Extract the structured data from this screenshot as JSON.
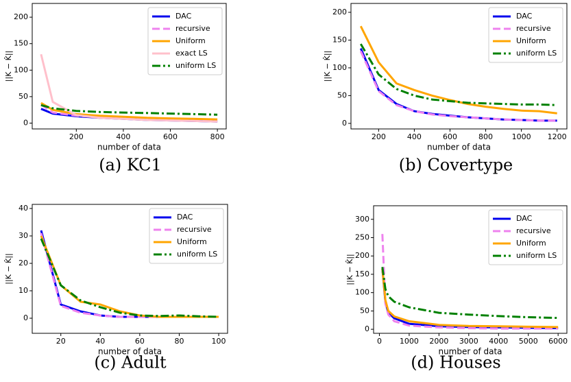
{
  "chart_data": [
    {
      "type": "line",
      "caption": "(a) KC1",
      "x_label": "number of data",
      "y_label": "||K − K̂||",
      "x": [
        50,
        100,
        200,
        300,
        400,
        500,
        600,
        700,
        800
      ],
      "xlim": [
        12.5,
        837.5
      ],
      "ylim": [
        -11,
        226
      ],
      "xticks": [
        200,
        400,
        600,
        800
      ],
      "yticks": [
        0,
        50,
        100,
        150,
        200
      ],
      "legend": "upper right",
      "series": [
        {
          "name": "DAC",
          "color": "#0000ee",
          "linestyle": "solid",
          "values": [
            27,
            18,
            13,
            10,
            8,
            6,
            5,
            4,
            3
          ]
        },
        {
          "name": "recursive",
          "color": "#ee82ee",
          "linestyle": "dashed",
          "values": [
            35,
            20,
            14,
            11,
            9,
            7,
            6,
            5,
            4
          ]
        },
        {
          "name": "Uniform",
          "color": "#ffa500",
          "linestyle": "solid",
          "values": [
            38,
            25,
            17,
            14,
            12,
            10,
            9,
            8,
            7
          ]
        },
        {
          "name": "exact LS",
          "color": "#ffc0cb",
          "linestyle": "solid",
          "values": [
            130,
            40,
            15,
            10,
            8,
            6,
            5,
            4,
            3
          ]
        },
        {
          "name": "uniform LS",
          "color": "#008000",
          "linestyle": "dashdot",
          "values": [
            34,
            28,
            23,
            21,
            20,
            19,
            18,
            17,
            16
          ]
        }
      ]
    },
    {
      "type": "line",
      "caption": "(b) Covertype",
      "x_label": "number of data",
      "y_label": "||K − K̂||",
      "x": [
        100,
        200,
        300,
        400,
        500,
        600,
        700,
        800,
        900,
        1000,
        1100,
        1200
      ],
      "xlim": [
        45,
        1255
      ],
      "ylim": [
        -10,
        216
      ],
      "xticks": [
        200,
        400,
        600,
        800,
        1000,
        1200
      ],
      "yticks": [
        0,
        50,
        100,
        150,
        200
      ],
      "legend": "upper right",
      "series": [
        {
          "name": "DAC",
          "color": "#0000ee",
          "linestyle": "solid",
          "values": [
            135,
            60,
            35,
            22,
            17,
            14,
            11,
            9,
            7,
            6,
            5,
            5
          ]
        },
        {
          "name": "recursive",
          "color": "#ee82ee",
          "linestyle": "dashed",
          "values": [
            130,
            58,
            33,
            22,
            16,
            13,
            11,
            9,
            7,
            6,
            5,
            5
          ]
        },
        {
          "name": "Uniform",
          "color": "#ffa500",
          "linestyle": "solid",
          "values": [
            175,
            110,
            72,
            60,
            50,
            42,
            35,
            30,
            26,
            23,
            22,
            18
          ]
        },
        {
          "name": "uniform LS",
          "color": "#008000",
          "linestyle": "dashdot",
          "values": [
            143,
            88,
            62,
            50,
            43,
            40,
            37,
            36,
            35,
            34,
            34,
            33
          ]
        }
      ]
    },
    {
      "type": "line",
      "caption": "(c) Adult",
      "x_label": "number of data",
      "y_label": "||K − K̂||",
      "x": [
        10,
        20,
        30,
        40,
        50,
        60,
        70,
        80,
        90,
        100
      ],
      "xlim": [
        5.5,
        104.5
      ],
      "ylim": [
        -5.5,
        41.5
      ],
      "xticks": [
        20,
        40,
        60,
        80,
        100
      ],
      "yticks": [
        0,
        10,
        20,
        30,
        40
      ],
      "legend": "upper right",
      "series": [
        {
          "name": "DAC",
          "color": "#0000ee",
          "linestyle": "solid",
          "values": [
            32,
            5,
            2.5,
            1,
            0.5,
            0.5,
            0.5,
            0.5,
            0.5,
            0.5
          ]
        },
        {
          "name": "recursive",
          "color": "#ee82ee",
          "linestyle": "dashed",
          "values": [
            31,
            4.5,
            2,
            1,
            0.5,
            0.5,
            0.5,
            0.5,
            0.5,
            0.5
          ]
        },
        {
          "name": "Uniform",
          "color": "#ffa500",
          "linestyle": "solid",
          "values": [
            30,
            12,
            6,
            5,
            2.5,
            1,
            0.5,
            0.5,
            0.5,
            0.5
          ]
        },
        {
          "name": "uniform LS",
          "color": "#008000",
          "linestyle": "dashdot",
          "values": [
            29,
            12,
            6.5,
            4,
            2,
            1,
            0.8,
            1,
            0.7,
            0.5
          ]
        }
      ]
    },
    {
      "type": "line",
      "caption": "(d) Houses",
      "x_label": "number of data",
      "y_label": "||K − K̂||",
      "x": [
        100,
        200,
        300,
        500,
        1000,
        2000,
        3000,
        4000,
        5000,
        6000
      ],
      "xlim": [
        -195,
        6295
      ],
      "ylim": [
        -11,
        337
      ],
      "xticks": [
        0,
        1000,
        2000,
        3000,
        4000,
        5000,
        6000
      ],
      "yticks": [
        0,
        50,
        100,
        150,
        200,
        250,
        300
      ],
      "legend": "upper right",
      "series": [
        {
          "name": "DAC",
          "color": "#0000ee",
          "linestyle": "solid",
          "values": [
            165,
            75,
            45,
            30,
            15,
            8,
            6,
            5,
            4,
            3
          ]
        },
        {
          "name": "recursive",
          "color": "#ee82ee",
          "linestyle": "dashed",
          "values": [
            260,
            70,
            40,
            22,
            10,
            5,
            3,
            2,
            2,
            2
          ]
        },
        {
          "name": "Uniform",
          "color": "#ffa500",
          "linestyle": "solid",
          "values": [
            165,
            80,
            50,
            35,
            22,
            12,
            9,
            8,
            7,
            6
          ]
        },
        {
          "name": "uniform LS",
          "color": "#008000",
          "linestyle": "dashdot",
          "values": [
            170,
            110,
            90,
            75,
            60,
            45,
            40,
            36,
            33,
            31
          ]
        }
      ]
    }
  ]
}
